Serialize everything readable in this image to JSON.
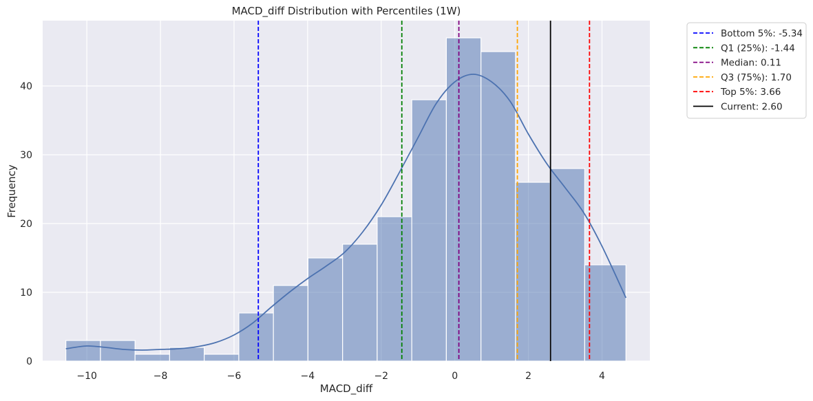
{
  "chart_data": {
    "type": "histogram",
    "title": "MACD_diff Distribution with Percentiles (1W)",
    "xlabel": "MACD_diff",
    "ylabel": "Frequency",
    "xlim": [
      -11.2,
      5.3
    ],
    "ylim": [
      0,
      49.5
    ],
    "xticks": [
      -10,
      -8,
      -6,
      -4,
      -2,
      0,
      2,
      4
    ],
    "xtick_labels": [
      "−10",
      "−8",
      "−6",
      "−4",
      "−2",
      "0",
      "2",
      "4"
    ],
    "yticks": [
      0,
      10,
      20,
      30,
      40
    ],
    "ytick_labels": [
      "0",
      "10",
      "20",
      "30",
      "40"
    ],
    "grid": true,
    "bar_color": "#4c72b0",
    "line_color": "#4c72b0",
    "bins": [
      {
        "x0": -10.57,
        "x1": -9.63,
        "count": 3
      },
      {
        "x0": -9.63,
        "x1": -8.69,
        "count": 3
      },
      {
        "x0": -8.69,
        "x1": -7.75,
        "count": 1
      },
      {
        "x0": -7.75,
        "x1": -6.81,
        "count": 2
      },
      {
        "x0": -6.81,
        "x1": -5.87,
        "count": 1
      },
      {
        "x0": -5.87,
        "x1": -4.93,
        "count": 7
      },
      {
        "x0": -4.93,
        "x1": -3.99,
        "count": 11
      },
      {
        "x0": -3.99,
        "x1": -3.05,
        "count": 15
      },
      {
        "x0": -3.05,
        "x1": -2.11,
        "count": 17
      },
      {
        "x0": -2.11,
        "x1": -1.17,
        "count": 21
      },
      {
        "x0": -1.17,
        "x1": -0.23,
        "count": 38
      },
      {
        "x0": -0.23,
        "x1": 0.71,
        "count": 47
      },
      {
        "x0": 0.71,
        "x1": 1.65,
        "count": 45
      },
      {
        "x0": 1.65,
        "x1": 2.59,
        "count": 26
      },
      {
        "x0": 2.59,
        "x1": 3.53,
        "count": 28
      },
      {
        "x0": 3.53,
        "x1": 4.65,
        "count": 14
      }
    ],
    "kde": {
      "x": [
        -10.57,
        -10.0,
        -9.5,
        -9.0,
        -8.5,
        -8.0,
        -7.5,
        -7.0,
        -6.5,
        -6.0,
        -5.5,
        -5.0,
        -4.5,
        -4.0,
        -3.5,
        -3.0,
        -2.5,
        -2.0,
        -1.5,
        -1.0,
        -0.5,
        0.0,
        0.5,
        1.0,
        1.5,
        2.0,
        2.5,
        3.0,
        3.5,
        4.0,
        4.65
      ],
      "y": [
        1.8,
        2.2,
        2.0,
        1.7,
        1.6,
        1.7,
        1.8,
        2.1,
        2.7,
        3.8,
        5.5,
        7.8,
        10.0,
        12.0,
        13.8,
        15.8,
        18.8,
        22.7,
        27.5,
        32.5,
        37.5,
        40.6,
        41.7,
        40.6,
        37.8,
        33.0,
        28.7,
        25.2,
        21.6,
        16.7,
        9.2
      ]
    },
    "vlines": [
      {
        "label": "Bottom 5%: -5.34",
        "x": -5.34,
        "color": "#0000ff",
        "style": "dashed"
      },
      {
        "label": "Q1 (25%): -1.44",
        "x": -1.44,
        "color": "#008000",
        "style": "dashed"
      },
      {
        "label": "Median: 0.11",
        "x": 0.11,
        "color": "#800080",
        "style": "dashed"
      },
      {
        "label": "Q3 (75%): 1.70",
        "x": 1.7,
        "color": "#ffa500",
        "style": "dashed"
      },
      {
        "label": "Top 5%: 3.66",
        "x": 3.66,
        "color": "#ff0000",
        "style": "dashed"
      },
      {
        "label": "Current: 2.60",
        "x": 2.6,
        "color": "#000000",
        "style": "solid"
      }
    ],
    "legend_position": "outside-top-right"
  }
}
